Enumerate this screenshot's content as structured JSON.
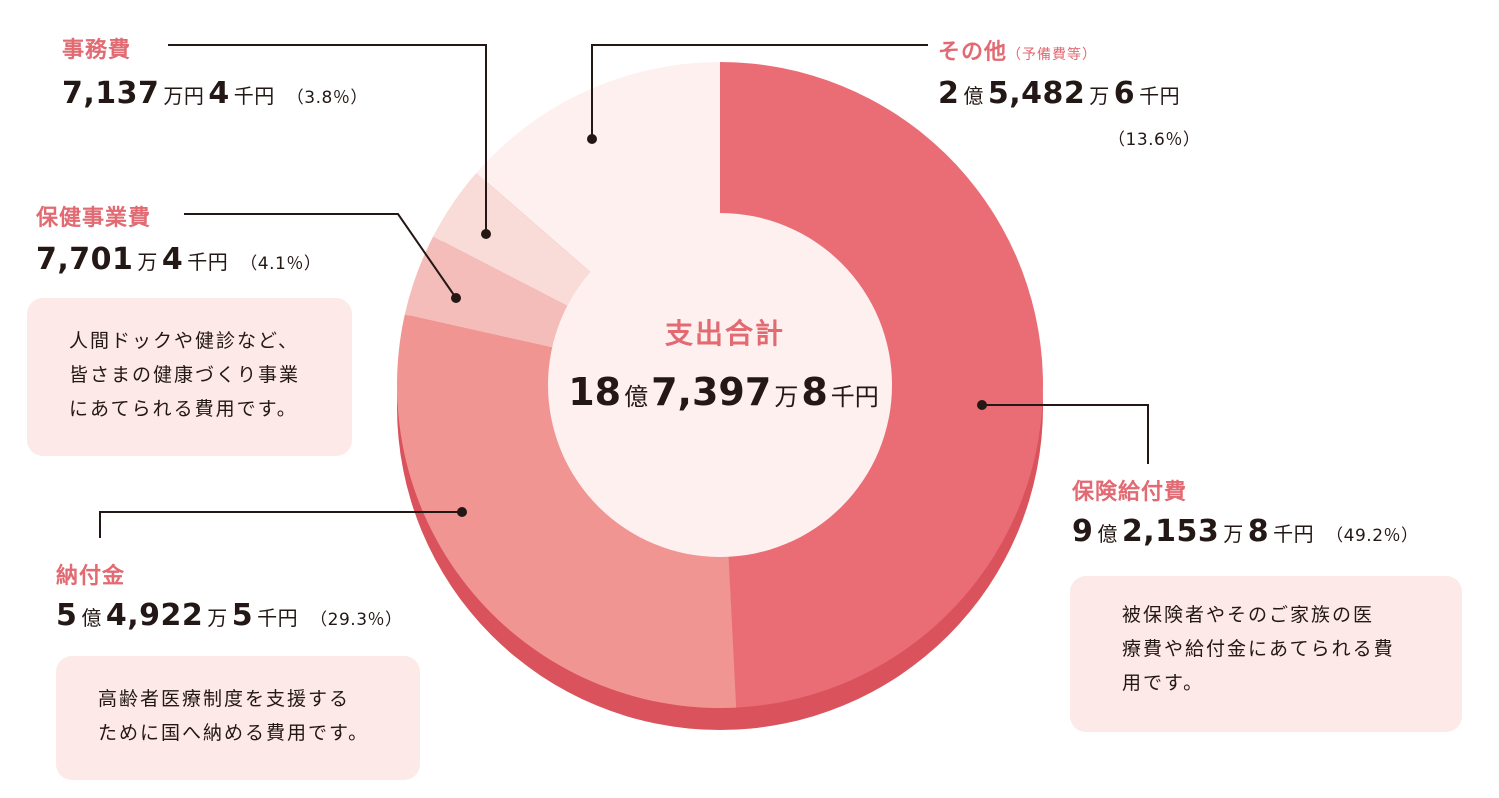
{
  "chart_data": {
    "type": "pie",
    "center": {
      "title": "支出合計",
      "total": "18億7,397万8千円",
      "total_parts": {
        "a": "18",
        "au": "億",
        "b": "7,397",
        "bu": "万",
        "c": "8",
        "cu": "千円"
      }
    },
    "slices": [
      {
        "key": "hoken_kyufu",
        "label": "保険給付費",
        "value": 49.2,
        "percent_label": "（49.2％）",
        "amount": "9億2,153万8千円",
        "amount_parts": {
          "a": "9",
          "au": "億",
          "b": "2,153",
          "bu": "万",
          "c": "8",
          "cu": "千円"
        },
        "color": "#ea6d76",
        "note_lines": [
          "被保険者やそのご家族の医",
          "療費や給付金にあてられる費",
          "用です。"
        ]
      },
      {
        "key": "nofukin",
        "label": "納付金",
        "value": 29.3,
        "percent_label": "（29.3％）",
        "amount": "5億4,922万5千円",
        "amount_parts": {
          "a": "5",
          "au": "億",
          "b": "4,922",
          "bu": "万",
          "c": "5",
          "cu": "千円"
        },
        "color": "#f09592",
        "note_lines": [
          "高齢者医療制度を支援する",
          "ために国へ納める費用です。"
        ]
      },
      {
        "key": "hoken_jigyo",
        "label": "保健事業費",
        "value": 4.1,
        "percent_label": "（4.1％）",
        "amount": "7,701万4千円",
        "amount_parts": {
          "b": "7,701",
          "bu": "万",
          "c": "4",
          "cu": "千円"
        },
        "color": "#f5bdb9",
        "note_lines": [
          "人間ドックや健診など、",
          "皆さまの健康づくり事業",
          "にあてられる費用です。"
        ]
      },
      {
        "key": "jimu",
        "label": "事務費",
        "value": 3.8,
        "percent_label": "（3.8％）",
        "amount": "7,137万円4千円",
        "amount_parts": {
          "b": "7,137",
          "bu": "万円",
          "c": "4",
          "cu": "千円"
        },
        "color": "#f9dbd8"
      },
      {
        "key": "sonota",
        "label": "その他",
        "sublabel": "（予備費等）",
        "value": 13.6,
        "percent_label": "（13.6％）",
        "amount": "2億5,482万6千円",
        "amount_parts": {
          "a": "2",
          "au": "億",
          "b": "5,482",
          "bu": "万",
          "c": "6",
          "cu": "千円"
        },
        "color": "#fdf0ef"
      }
    ]
  }
}
